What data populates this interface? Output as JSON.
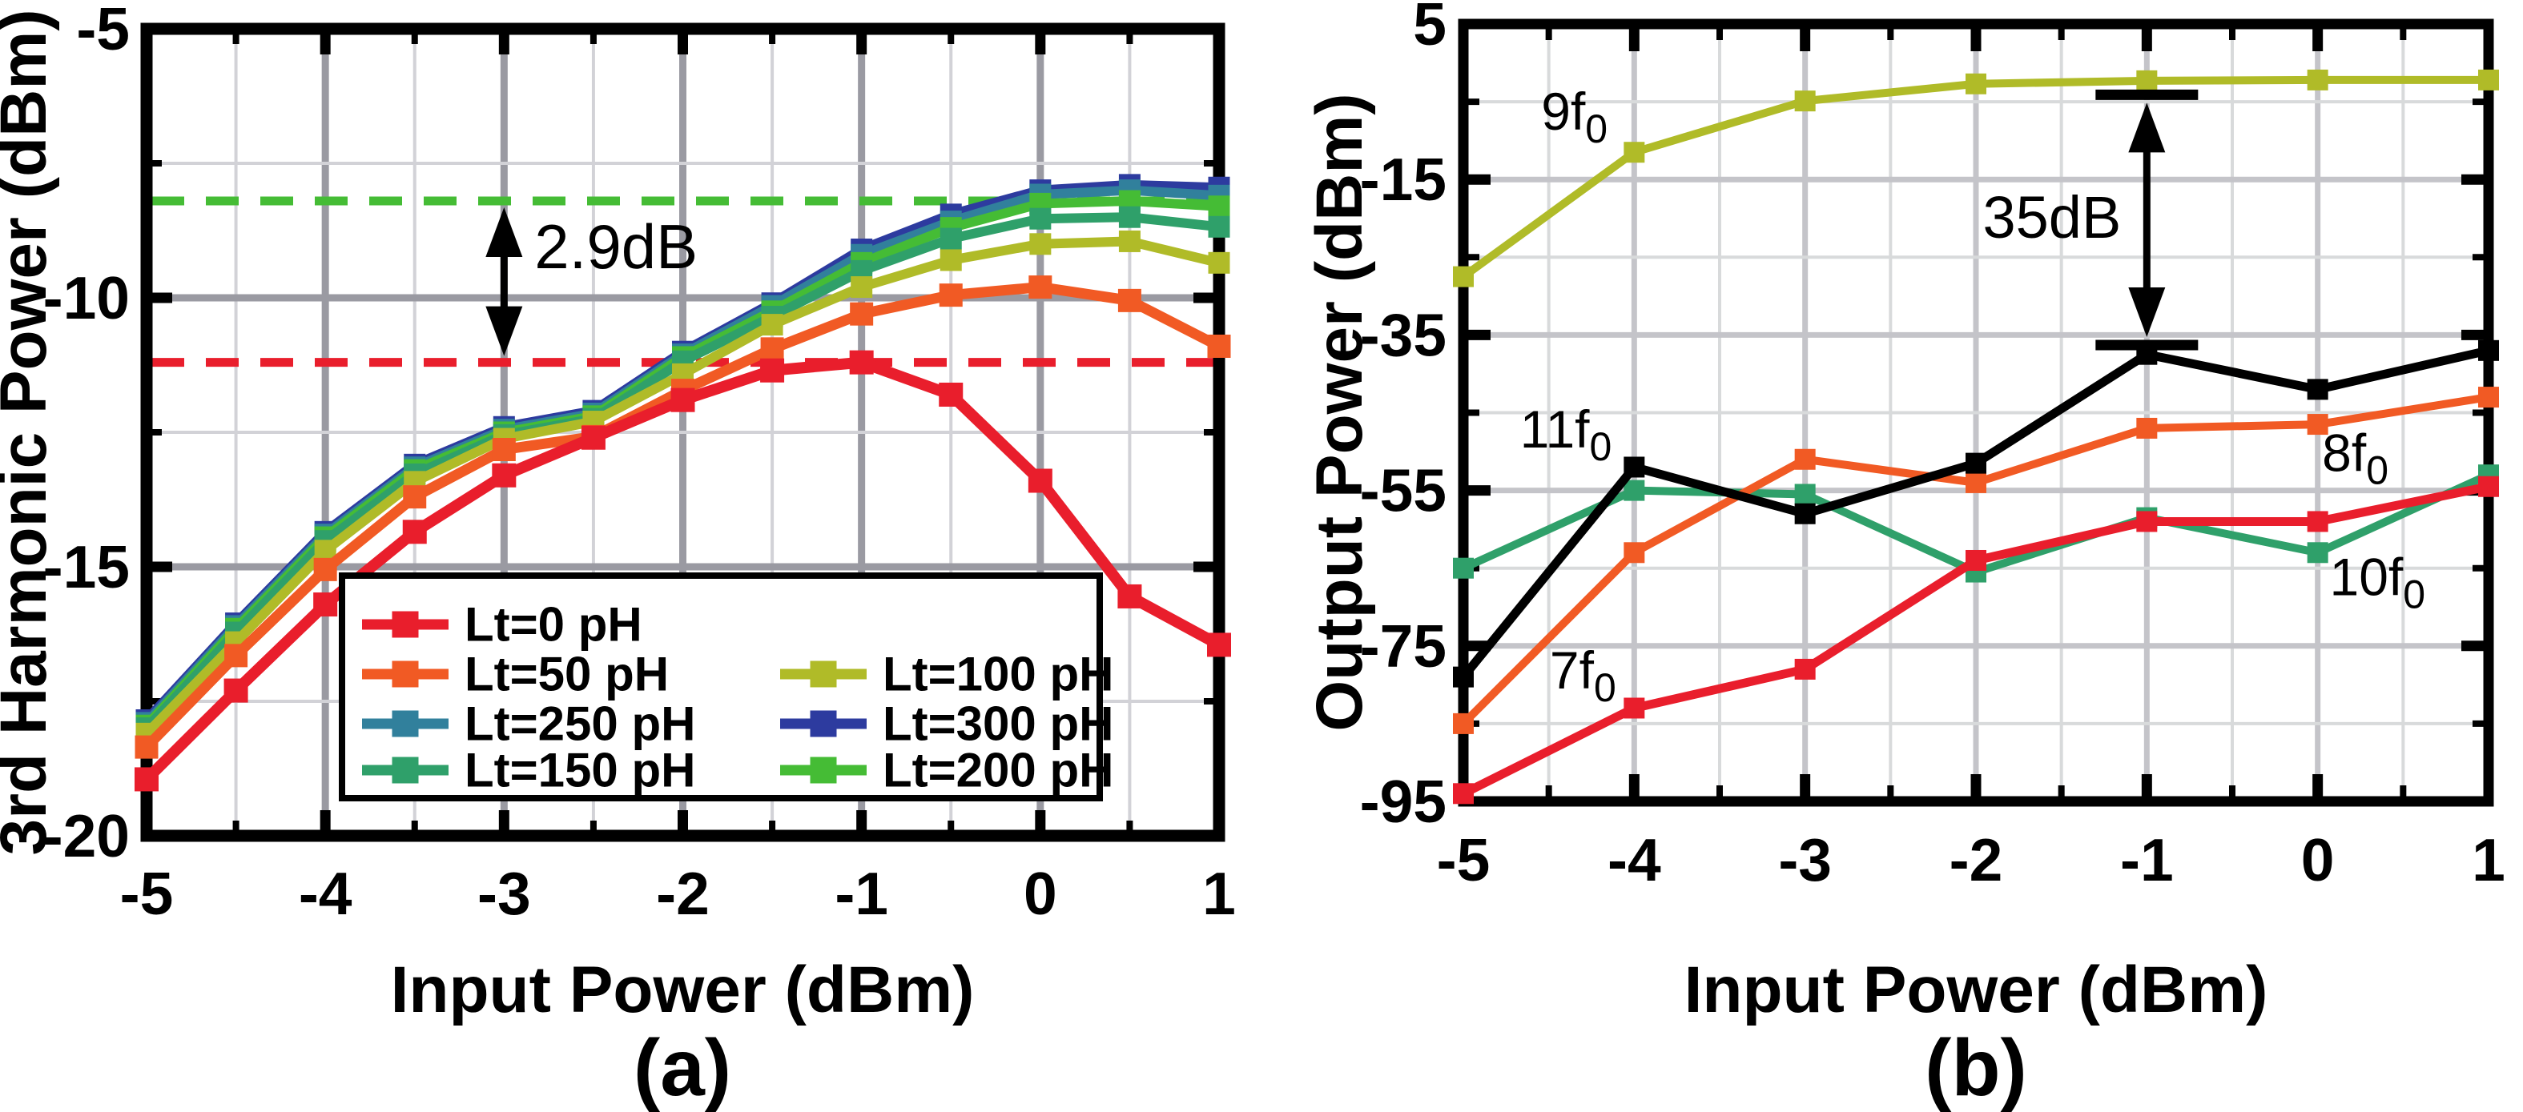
{
  "figure": {
    "panel_a": {
      "caption": "(a)"
    },
    "panel_b": {
      "caption": "(b)"
    }
  },
  "chart_data": [
    {
      "id": "a",
      "type": "line",
      "title": "",
      "xlabel": "Input Power (dBm)",
      "ylabel": "3rd Harmonic Power (dBm)",
      "xlim": [
        -5,
        1
      ],
      "ylim": [
        -20,
        -5
      ],
      "x_major_ticks": [
        -5,
        -4,
        -3,
        -2,
        -1,
        0,
        1
      ],
      "x_minor_ticks": [
        -4.5,
        -3.5,
        -2.5,
        -1.5,
        -0.5,
        0.5
      ],
      "y_major_ticks": [
        -5,
        -10,
        -15,
        -20
      ],
      "y_minor_ticks": [
        -7.5,
        -12.5,
        -17.5
      ],
      "grid": true,
      "x": [
        -5,
        -4.5,
        -4,
        -3.5,
        -3,
        -2.5,
        -2,
        -1.5,
        -1,
        -0.5,
        0,
        0.5,
        1
      ],
      "series": [
        {
          "name": "Lt=0 pH",
          "color": "#E91E2C",
          "width": 14,
          "marker": 30,
          "values": [
            -18.95,
            -17.3,
            -15.7,
            -14.35,
            -13.3,
            -12.6,
            -11.9,
            -11.35,
            -11.2,
            -11.8,
            -13.4,
            -15.55,
            -16.45
          ]
        },
        {
          "name": "Lt=50 pH",
          "color": "#F15A24",
          "width": 13,
          "marker": 29,
          "values": [
            -18.35,
            -16.65,
            -15.05,
            -13.7,
            -12.82,
            -12.58,
            -11.72,
            -10.95,
            -10.3,
            -9.95,
            -9.8,
            -10.05,
            -10.9
          ]
        },
        {
          "name": "Lt=250 pH",
          "color": "#31809C",
          "width": 12,
          "marker": 27,
          "values": [
            -17.9,
            -16.1,
            -14.4,
            -13.15,
            -12.45,
            -12.15,
            -11.05,
            -10.15,
            -9.2,
            -8.58,
            -8.08,
            -8.0,
            -8.1
          ]
        },
        {
          "name": "Lt=150 pH",
          "color": "#2FA06A",
          "width": 12,
          "marker": 27,
          "values": [
            -18.0,
            -16.22,
            -14.52,
            -13.28,
            -12.55,
            -12.25,
            -11.18,
            -10.35,
            -9.5,
            -8.9,
            -8.53,
            -8.5,
            -8.68
          ]
        },
        {
          "name": "Lt=100 pH",
          "color": "#B0BB28",
          "width": 12,
          "marker": 27,
          "values": [
            -18.1,
            -16.4,
            -14.7,
            -13.42,
            -12.62,
            -12.3,
            -11.42,
            -10.5,
            -9.8,
            -9.3,
            -9.0,
            -8.95,
            -9.35
          ]
        },
        {
          "name": "Lt=300 pH",
          "color": "#2D3B9F",
          "width": 12,
          "marker": 27,
          "values": [
            -17.85,
            -16.05,
            -14.35,
            -13.1,
            -12.4,
            -12.1,
            -11.0,
            -10.1,
            -9.1,
            -8.45,
            -8.0,
            -7.9,
            -7.95
          ]
        },
        {
          "name": "Lt=200 pH",
          "color": "#45BC35",
          "width": 12,
          "marker": 27,
          "values": [
            -17.95,
            -16.15,
            -14.45,
            -13.2,
            -12.5,
            -12.2,
            -11.1,
            -10.25,
            -9.35,
            -8.7,
            -8.25,
            -8.2,
            -8.3
          ]
        }
      ],
      "draw_order": [
        5,
        2,
        6,
        3,
        4,
        1,
        0
      ],
      "reference_lines": [
        {
          "y": -8.2,
          "color": "#45BC35",
          "style": "dashed"
        },
        {
          "y": -11.2,
          "color": "#E91E2C",
          "style": "dashed"
        }
      ],
      "annotations": [
        {
          "text": "2.9dB",
          "style": "plain",
          "x": -3,
          "y_from": -8.2,
          "y_to": -11.2,
          "text_x": -2.83,
          "text_y": -9.45,
          "text_anchor": "start"
        }
      ],
      "legend": {
        "columns": [
          [
            "Lt=0 pH",
            "Lt=50 pH",
            "Lt=250 pH",
            "Lt=150 pH"
          ],
          [
            "Lt=100 pH",
            "Lt=300 pH",
            "Lt=200 pH"
          ]
        ],
        "position": "lower-right"
      }
    },
    {
      "id": "b",
      "type": "line",
      "title": "",
      "xlabel": "Input Power (dBm)",
      "ylabel": "Output Power (dBm)",
      "xlim": [
        -5,
        1
      ],
      "ylim": [
        -95,
        5
      ],
      "x_major_ticks": [
        -5,
        -4,
        -3,
        -2,
        -1,
        0,
        1
      ],
      "x_minor_ticks": [
        -4.5,
        -3.5,
        -2.5,
        -1.5,
        -0.5,
        0.5
      ],
      "y_major_ticks": [
        5,
        -15,
        -35,
        -55,
        -75,
        -95
      ],
      "y_minor_ticks": [
        -5,
        -25,
        -45,
        -65,
        -85
      ],
      "grid": true,
      "x": [
        -5,
        -4,
        -3,
        -2,
        -1,
        0,
        1
      ],
      "series": [
        {
          "name": "9f0",
          "color": "#B0BB28",
          "width": 10,
          "marker": 26,
          "values": [
            -27.5,
            -11.5,
            -4.9,
            -2.7,
            -2.3,
            -2.2,
            -2.2
          ],
          "label": {
            "text": "9f0",
            "color": "#B0BB28",
            "x": -4.35,
            "y": -8.6
          }
        },
        {
          "name": "10f0",
          "color": "#2FA06A",
          "width": 10,
          "marker": 26,
          "values": [
            -65,
            -55,
            -55.5,
            -65.5,
            -58.5,
            -63,
            -53
          ],
          "label": {
            "text": "10f0",
            "color": "#1B7A45",
            "x": 0.35,
            "y": -68.5
          }
        },
        {
          "name": "8f0",
          "color": "#F15A24",
          "width": 10,
          "marker": 26,
          "values": [
            -85,
            -63,
            -51,
            -54,
            -47,
            -46.5,
            -43
          ],
          "label": {
            "text": "8f0",
            "color": "#F15A24",
            "x": 0.22,
            "y": -52.5
          }
        },
        {
          "name": "11f0",
          "color": "#000000",
          "width": 11,
          "marker": 26,
          "values": [
            -79,
            -52,
            -58,
            -51.5,
            -37.5,
            -42,
            -37
          ],
          "label": {
            "text": "11f0",
            "color": "#000000",
            "x": -4.4,
            "y": -49.5
          }
        },
        {
          "name": "7f0",
          "color": "#E91E2C",
          "width": 11,
          "marker": 26,
          "values": [
            -94,
            -83,
            -78,
            -64,
            -59,
            -59,
            -54.5
          ],
          "label": {
            "text": "7f0",
            "color": "#E91E2C",
            "x": -4.3,
            "y": -80.5
          }
        }
      ],
      "draw_order": [
        0,
        1,
        2,
        3,
        4
      ],
      "reference_lines": [],
      "annotations": [
        {
          "text": "35dB",
          "style": "capped",
          "x": -1,
          "y_from": -4.1,
          "y_to": -36.3,
          "text_x": -1.15,
          "text_y": -22.5,
          "text_anchor": "end"
        }
      ]
    }
  ]
}
